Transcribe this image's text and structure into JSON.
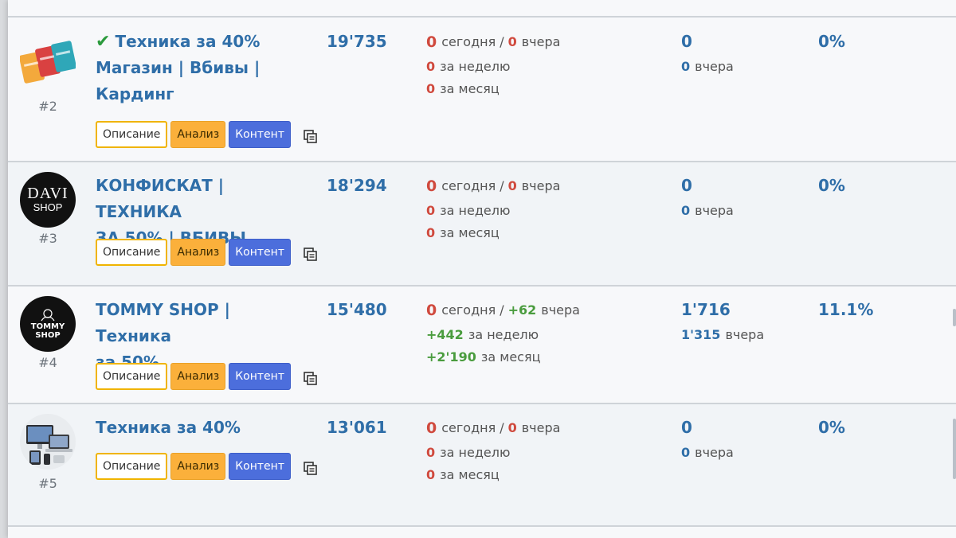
{
  "colors": {
    "title_blue": "#2f6ea8",
    "zero_red": "#d04a3e",
    "positive_green": "#4a9c3e",
    "button_description_border": "#f0b400",
    "button_analysis_bg": "#fbb03b",
    "button_content_bg": "#4c6edc"
  },
  "buttons": {
    "description": "Описание",
    "analysis": "Анализ",
    "content": "Контент"
  },
  "channels": [
    {
      "rank": "#2",
      "verified": true,
      "title_lines": [
        "Техника за 40%",
        "Магазин | Вбивы |",
        "Кардинг"
      ],
      "subscribers": "19'735",
      "growth": {
        "today": "0",
        "today_label": "сегодня",
        "slash": "/",
        "yesterday": "0",
        "yesterday_label": "вчера",
        "week": "0",
        "week_label": "за неделю",
        "month": "0",
        "month_label": "за месяц"
      },
      "views": "0",
      "views_yesterday": "0",
      "views_yesterday_label": "вчера",
      "er": "0%",
      "avatar_icon": "credit-cards-icon"
    },
    {
      "rank": "#3",
      "verified": false,
      "title_lines": [
        "КОНФИСКАТ | ТЕХНИКА",
        "ЗА 50% | ВБИВЫ"
      ],
      "subscribers": "18'294",
      "growth": {
        "today": "0",
        "today_label": "сегодня",
        "slash": "/",
        "yesterday": "0",
        "yesterday_label": "вчера",
        "week": "0",
        "week_label": "за неделю",
        "month": "0",
        "month_label": "за месяц"
      },
      "views": "0",
      "views_yesterday": "0",
      "views_yesterday_label": "вчера",
      "er": "0%",
      "avatar_icon": "davi-shop-logo",
      "avatar_text_1": "DAVI",
      "avatar_text_2": "SHOP"
    },
    {
      "rank": "#4",
      "verified": false,
      "title_lines": [
        "TOMMY SHOP | Техника",
        "за 50%"
      ],
      "subscribers": "15'480",
      "growth": {
        "today": "0",
        "today_label": "сегодня",
        "slash": "/",
        "yesterday": "+62",
        "yesterday_label": "вчера",
        "week": "+442",
        "week_label": "за неделю",
        "month": "+2'190",
        "month_label": "за месяц"
      },
      "views": "1'716",
      "views_yesterday": "1'315",
      "views_yesterday_label": "вчера",
      "er": "11.1%",
      "avatar_icon": "tommy-shop-logo",
      "avatar_text_1": "TOMMY",
      "avatar_text_2": "SHOP"
    },
    {
      "rank": "#5",
      "verified": false,
      "title_lines": [
        "Техника за 40%"
      ],
      "subscribers": "13'061",
      "growth": {
        "today": "0",
        "today_label": "сегодня",
        "slash": "/",
        "yesterday": "0",
        "yesterday_label": "вчера",
        "week": "0",
        "week_label": "за неделю",
        "month": "0",
        "month_label": "за месяц"
      },
      "views": "0",
      "views_yesterday": "0",
      "views_yesterday_label": "вчера",
      "er": "0%",
      "avatar_icon": "apple-devices-icon"
    }
  ]
}
